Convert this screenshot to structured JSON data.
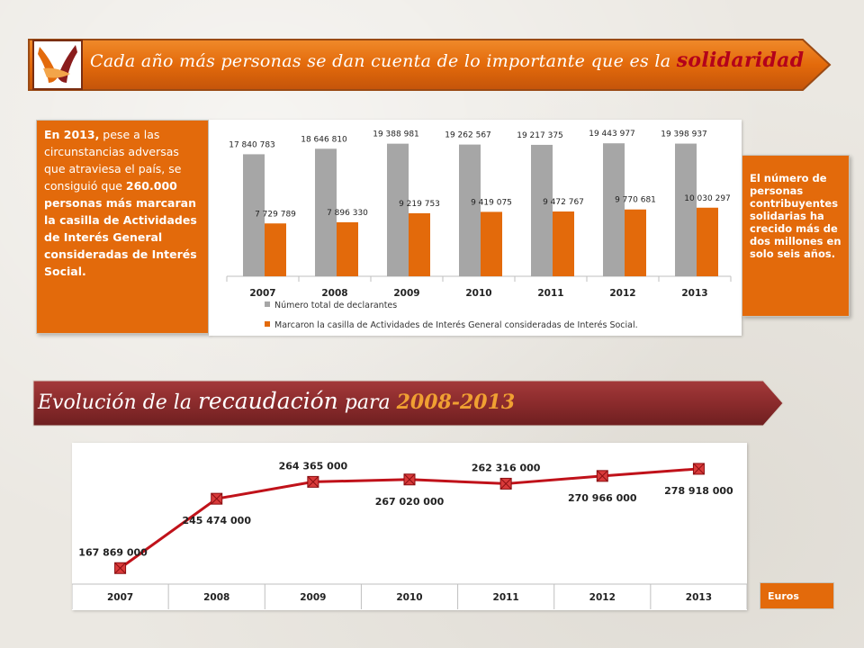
{
  "header": {
    "title_main": "Cada año más personas se dan cuenta de lo importante que es la",
    "title_accent": "solidaridad"
  },
  "left_box": {
    "p1": "En 2013,",
    "p2": " pese a las circunstancias adversas que atraviesa el país, se consiguió que ",
    "p3": "260.000 personas más marcaran la casilla de Actividades de Interés General consideradas de Interés Social."
  },
  "right_box": {
    "text": "El número de personas contribuyentes solidarias ha crecido más de dos millones en solo seis años."
  },
  "section_banner": {
    "part1": "Evolución de la ",
    "part2": "recaudación",
    "part3": " para ",
    "part4": "2008-2013"
  },
  "units_label": "Euros",
  "colors": {
    "orange": "#e36a0b",
    "gray_bar": "#a6a6a6",
    "line_red": "#c0121a",
    "banner_orange": "#e36a0b",
    "banner_maroon": "#8b2b2c"
  },
  "chart_data": [
    {
      "type": "bar",
      "categories": [
        "2007",
        "2008",
        "2009",
        "2010",
        "2011",
        "2012",
        "2013"
      ],
      "series": [
        {
          "name": "Número total de declarantes",
          "values": [
            17840783,
            18646810,
            19388981,
            19262567,
            19217375,
            19443977,
            19398937
          ],
          "labels": [
            "17 840 783",
            "18 646 810",
            "19 388 981",
            "19 262 567",
            "19 217 375",
            "19 443 977",
            "19 398 937"
          ]
        },
        {
          "name": "Marcaron la casilla de Actividades de Interés General consideradas de Interés Social.",
          "values": [
            7729789,
            7896330,
            9219753,
            9419075,
            9472767,
            9770681,
            10030297
          ],
          "labels": [
            "7 729 789",
            "7 896 330",
            "9 219 753",
            "9 419 075",
            "9 472 767",
            "9 770 681",
            "10 030 297"
          ]
        }
      ],
      "ylim": [
        0,
        20000000
      ],
      "legend": "bottom"
    },
    {
      "type": "line",
      "categories": [
        "2007",
        "2008",
        "2009",
        "2010",
        "2011",
        "2012",
        "2013"
      ],
      "values": [
        167869000,
        245474000,
        264365000,
        267020000,
        262316000,
        270966000,
        278918000
      ],
      "labels": [
        "167 869 000",
        "245 474 000",
        "264 365 000",
        "267 020 000",
        "262 316 000",
        "270 966 000",
        "278 918 000"
      ],
      "ylim": [
        150000000,
        300000000
      ]
    }
  ]
}
